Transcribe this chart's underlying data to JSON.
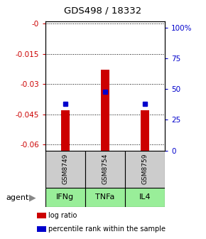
{
  "title": "GDS498 / 18332",
  "samples": [
    "GSM8749",
    "GSM8754",
    "GSM8759"
  ],
  "agents": [
    "IFNg",
    "TNFa",
    "IL4"
  ],
  "log_ratios": [
    -0.043,
    -0.023,
    -0.043
  ],
  "percentile_ranks": [
    -0.04,
    -0.034,
    -0.04
  ],
  "ylim_left": [
    -0.063,
    0.001
  ],
  "ylim_right": [
    0,
    105
  ],
  "left_ticks": [
    0.0,
    -0.015,
    -0.03,
    -0.045,
    -0.06
  ],
  "left_tick_labels": [
    "-0",
    "-0.015",
    "-0.03",
    "-0.045",
    "-0.06"
  ],
  "right_ticks": [
    100,
    75,
    50,
    25,
    0
  ],
  "right_tick_labels": [
    "100%",
    "75",
    "50",
    "25",
    "0"
  ],
  "bar_color": "#cc0000",
  "percentile_color": "#0000cc",
  "sample_box_color": "#cccccc",
  "agent_box_color": "#99ee99",
  "background_color": "#ffffff",
  "left_axis_color": "#cc0000",
  "right_axis_color": "#0000cc",
  "bar_width": 0.22
}
